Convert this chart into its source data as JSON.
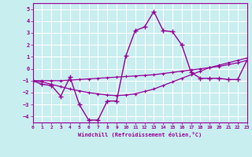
{
  "xlabel": "Windchill (Refroidissement éolien,°C)",
  "bg_color": "#c8eef0",
  "line_color": "#990099",
  "grid_color": "#ffffff",
  "x": [
    0,
    1,
    2,
    3,
    4,
    5,
    6,
    7,
    8,
    9,
    10,
    11,
    12,
    13,
    14,
    15,
    16,
    17,
    18,
    19,
    20,
    21,
    22,
    23
  ],
  "y_main": [
    -1.0,
    -1.3,
    -1.4,
    -2.3,
    -0.7,
    -3.0,
    -4.3,
    -4.3,
    -2.7,
    -2.7,
    1.1,
    3.2,
    3.5,
    4.8,
    3.2,
    3.1,
    2.0,
    -0.3,
    -0.8,
    -0.8,
    -0.8,
    -0.9,
    -0.9,
    0.7
  ],
  "y_ref1": [
    -1.0,
    -1.0,
    -1.0,
    -1.0,
    -0.95,
    -0.9,
    -0.85,
    -0.8,
    -0.75,
    -0.7,
    -0.65,
    -0.6,
    -0.55,
    -0.5,
    -0.4,
    -0.3,
    -0.2,
    -0.1,
    0.0,
    0.1,
    0.2,
    0.35,
    0.5,
    0.7
  ],
  "y_ref2": [
    -1.0,
    -1.1,
    -1.3,
    -1.5,
    -1.7,
    -1.85,
    -2.0,
    -2.1,
    -2.2,
    -2.25,
    -2.2,
    -2.1,
    -1.9,
    -1.7,
    -1.4,
    -1.1,
    -0.8,
    -0.5,
    -0.2,
    0.1,
    0.3,
    0.5,
    0.7,
    0.9
  ],
  "xlim": [
    0,
    23
  ],
  "ylim": [
    -4.5,
    5.5
  ],
  "yticks": [
    -4,
    -3,
    -2,
    -1,
    0,
    1,
    2,
    3,
    4,
    5
  ],
  "xticks": [
    0,
    1,
    2,
    3,
    4,
    5,
    6,
    7,
    8,
    9,
    10,
    11,
    12,
    13,
    14,
    15,
    16,
    17,
    18,
    19,
    20,
    21,
    22,
    23
  ]
}
